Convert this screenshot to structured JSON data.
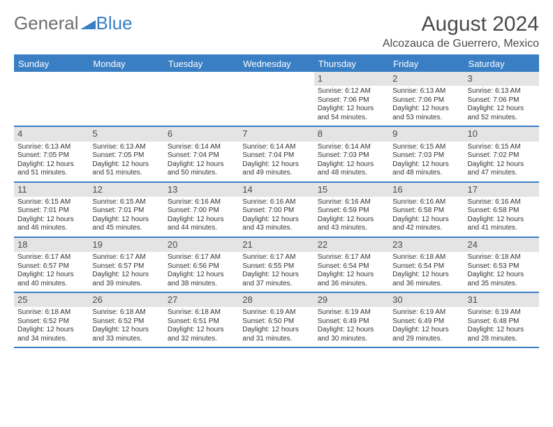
{
  "logo": {
    "general": "General",
    "blue": "Blue"
  },
  "title": "August 2024",
  "location": "Alcozauca de Guerrero, Mexico",
  "weekdays": [
    "Sunday",
    "Monday",
    "Tuesday",
    "Wednesday",
    "Thursday",
    "Friday",
    "Saturday"
  ],
  "colors": {
    "brand_blue": "#3a7fc4",
    "band_gray": "#e4e4e4",
    "text": "#333333",
    "title_text": "#4a4a4a",
    "logo_gray": "#6e6e6e"
  },
  "weeks": [
    [
      {
        "num": "",
        "sunrise": "",
        "sunset": "",
        "daylight": ""
      },
      {
        "num": "",
        "sunrise": "",
        "sunset": "",
        "daylight": ""
      },
      {
        "num": "",
        "sunrise": "",
        "sunset": "",
        "daylight": ""
      },
      {
        "num": "",
        "sunrise": "",
        "sunset": "",
        "daylight": ""
      },
      {
        "num": "1",
        "sunrise": "Sunrise: 6:12 AM",
        "sunset": "Sunset: 7:06 PM",
        "daylight": "Daylight: 12 hours and 54 minutes."
      },
      {
        "num": "2",
        "sunrise": "Sunrise: 6:13 AM",
        "sunset": "Sunset: 7:06 PM",
        "daylight": "Daylight: 12 hours and 53 minutes."
      },
      {
        "num": "3",
        "sunrise": "Sunrise: 6:13 AM",
        "sunset": "Sunset: 7:06 PM",
        "daylight": "Daylight: 12 hours and 52 minutes."
      }
    ],
    [
      {
        "num": "4",
        "sunrise": "Sunrise: 6:13 AM",
        "sunset": "Sunset: 7:05 PM",
        "daylight": "Daylight: 12 hours and 51 minutes."
      },
      {
        "num": "5",
        "sunrise": "Sunrise: 6:13 AM",
        "sunset": "Sunset: 7:05 PM",
        "daylight": "Daylight: 12 hours and 51 minutes."
      },
      {
        "num": "6",
        "sunrise": "Sunrise: 6:14 AM",
        "sunset": "Sunset: 7:04 PM",
        "daylight": "Daylight: 12 hours and 50 minutes."
      },
      {
        "num": "7",
        "sunrise": "Sunrise: 6:14 AM",
        "sunset": "Sunset: 7:04 PM",
        "daylight": "Daylight: 12 hours and 49 minutes."
      },
      {
        "num": "8",
        "sunrise": "Sunrise: 6:14 AM",
        "sunset": "Sunset: 7:03 PM",
        "daylight": "Daylight: 12 hours and 48 minutes."
      },
      {
        "num": "9",
        "sunrise": "Sunrise: 6:15 AM",
        "sunset": "Sunset: 7:03 PM",
        "daylight": "Daylight: 12 hours and 48 minutes."
      },
      {
        "num": "10",
        "sunrise": "Sunrise: 6:15 AM",
        "sunset": "Sunset: 7:02 PM",
        "daylight": "Daylight: 12 hours and 47 minutes."
      }
    ],
    [
      {
        "num": "11",
        "sunrise": "Sunrise: 6:15 AM",
        "sunset": "Sunset: 7:01 PM",
        "daylight": "Daylight: 12 hours and 46 minutes."
      },
      {
        "num": "12",
        "sunrise": "Sunrise: 6:15 AM",
        "sunset": "Sunset: 7:01 PM",
        "daylight": "Daylight: 12 hours and 45 minutes."
      },
      {
        "num": "13",
        "sunrise": "Sunrise: 6:16 AM",
        "sunset": "Sunset: 7:00 PM",
        "daylight": "Daylight: 12 hours and 44 minutes."
      },
      {
        "num": "14",
        "sunrise": "Sunrise: 6:16 AM",
        "sunset": "Sunset: 7:00 PM",
        "daylight": "Daylight: 12 hours and 43 minutes."
      },
      {
        "num": "15",
        "sunrise": "Sunrise: 6:16 AM",
        "sunset": "Sunset: 6:59 PM",
        "daylight": "Daylight: 12 hours and 43 minutes."
      },
      {
        "num": "16",
        "sunrise": "Sunrise: 6:16 AM",
        "sunset": "Sunset: 6:58 PM",
        "daylight": "Daylight: 12 hours and 42 minutes."
      },
      {
        "num": "17",
        "sunrise": "Sunrise: 6:16 AM",
        "sunset": "Sunset: 6:58 PM",
        "daylight": "Daylight: 12 hours and 41 minutes."
      }
    ],
    [
      {
        "num": "18",
        "sunrise": "Sunrise: 6:17 AM",
        "sunset": "Sunset: 6:57 PM",
        "daylight": "Daylight: 12 hours and 40 minutes."
      },
      {
        "num": "19",
        "sunrise": "Sunrise: 6:17 AM",
        "sunset": "Sunset: 6:57 PM",
        "daylight": "Daylight: 12 hours and 39 minutes."
      },
      {
        "num": "20",
        "sunrise": "Sunrise: 6:17 AM",
        "sunset": "Sunset: 6:56 PM",
        "daylight": "Daylight: 12 hours and 38 minutes."
      },
      {
        "num": "21",
        "sunrise": "Sunrise: 6:17 AM",
        "sunset": "Sunset: 6:55 PM",
        "daylight": "Daylight: 12 hours and 37 minutes."
      },
      {
        "num": "22",
        "sunrise": "Sunrise: 6:17 AM",
        "sunset": "Sunset: 6:54 PM",
        "daylight": "Daylight: 12 hours and 36 minutes."
      },
      {
        "num": "23",
        "sunrise": "Sunrise: 6:18 AM",
        "sunset": "Sunset: 6:54 PM",
        "daylight": "Daylight: 12 hours and 36 minutes."
      },
      {
        "num": "24",
        "sunrise": "Sunrise: 6:18 AM",
        "sunset": "Sunset: 6:53 PM",
        "daylight": "Daylight: 12 hours and 35 minutes."
      }
    ],
    [
      {
        "num": "25",
        "sunrise": "Sunrise: 6:18 AM",
        "sunset": "Sunset: 6:52 PM",
        "daylight": "Daylight: 12 hours and 34 minutes."
      },
      {
        "num": "26",
        "sunrise": "Sunrise: 6:18 AM",
        "sunset": "Sunset: 6:52 PM",
        "daylight": "Daylight: 12 hours and 33 minutes."
      },
      {
        "num": "27",
        "sunrise": "Sunrise: 6:18 AM",
        "sunset": "Sunset: 6:51 PM",
        "daylight": "Daylight: 12 hours and 32 minutes."
      },
      {
        "num": "28",
        "sunrise": "Sunrise: 6:19 AM",
        "sunset": "Sunset: 6:50 PM",
        "daylight": "Daylight: 12 hours and 31 minutes."
      },
      {
        "num": "29",
        "sunrise": "Sunrise: 6:19 AM",
        "sunset": "Sunset: 6:49 PM",
        "daylight": "Daylight: 12 hours and 30 minutes."
      },
      {
        "num": "30",
        "sunrise": "Sunrise: 6:19 AM",
        "sunset": "Sunset: 6:49 PM",
        "daylight": "Daylight: 12 hours and 29 minutes."
      },
      {
        "num": "31",
        "sunrise": "Sunrise: 6:19 AM",
        "sunset": "Sunset: 6:48 PM",
        "daylight": "Daylight: 12 hours and 28 minutes."
      }
    ]
  ]
}
